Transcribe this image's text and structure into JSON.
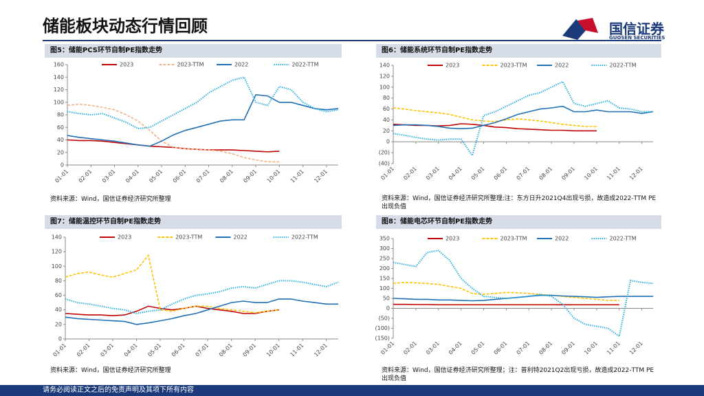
{
  "header": {
    "title": "储能板块动态行情回顾",
    "logo": "国信证券",
    "logo_en": "GUOSEN SECURITIES"
  },
  "footer": "请务必阅读正文之后的免责声明及其项下所有内容",
  "chart_data": [
    {
      "type": "line",
      "title": "图5：储能PCS环节自制PE指数走势",
      "source": "资料来源：Wind，国信证券经济研究所整理",
      "categories": [
        "01-01",
        null,
        "02-01",
        null,
        "03-01",
        null,
        "04-01",
        null,
        "05-01",
        null,
        "06-01",
        null,
        "07-01",
        null,
        "08-01",
        null,
        "09-01",
        null,
        "10-01",
        null,
        "11-01",
        null,
        "12-01",
        null
      ],
      "ylim": [
        0,
        160
      ],
      "yticks": [
        0,
        20,
        40,
        60,
        80,
        100,
        120,
        140,
        160
      ],
      "series": [
        {
          "name": "2023",
          "color": "#c00000",
          "style": "solid",
          "values": [
            40,
            39,
            39,
            38,
            36,
            34,
            32,
            30,
            29,
            28,
            26,
            25,
            24,
            24,
            24,
            23,
            22,
            21,
            22,
            null,
            null,
            null,
            null,
            null
          ]
        },
        {
          "name": "2023-TTM",
          "color": "#f4b183",
          "style": "dashed",
          "values": [
            95,
            97,
            95,
            92,
            88,
            80,
            70,
            55,
            38,
            28,
            26,
            25,
            24,
            22,
            18,
            12,
            8,
            5,
            5,
            null,
            null,
            null,
            null,
            null
          ]
        },
        {
          "name": "2022",
          "color": "#1f6fb5",
          "style": "solid",
          "values": [
            47,
            44,
            42,
            40,
            38,
            35,
            32,
            30,
            38,
            48,
            55,
            60,
            65,
            70,
            72,
            72,
            112,
            110,
            100,
            100,
            95,
            90,
            88,
            90
          ]
        },
        {
          "name": "2022-TTM",
          "color": "#2ab0e0",
          "style": "dotted",
          "values": [
            85,
            82,
            80,
            82,
            75,
            68,
            58,
            60,
            70,
            80,
            90,
            100,
            115,
            125,
            135,
            140,
            100,
            95,
            125,
            120,
            100,
            90,
            85,
            88
          ]
        }
      ]
    },
    {
      "type": "line",
      "title": "图6：储能系统环节自制PE指数走势",
      "source": "资料来源：Wind，国信证券经济研究所整理;注：东方日升2021Q4出现亏损，故造成2022-TTM PE出现负值",
      "categories": [
        "01-01",
        null,
        "02-01",
        null,
        "03-01",
        null,
        "04-01",
        null,
        "05-01",
        null,
        "06-01",
        null,
        "07-01",
        null,
        "08-01",
        null,
        "09-01",
        null,
        "10-01",
        null,
        "11-01",
        null,
        "12-01",
        null
      ],
      "ylim": [
        -40,
        140
      ],
      "yticks": [
        {
          "value": -40,
          "label": "(40)"
        },
        {
          "value": -20,
          "label": "(20)"
        },
        0,
        20,
        40,
        60,
        80,
        100,
        120,
        140
      ],
      "series": [
        {
          "name": "2023",
          "color": "#c00000",
          "style": "solid",
          "values": [
            32,
            31,
            30,
            30,
            29,
            30,
            33,
            32,
            30,
            27,
            26,
            24,
            23,
            22,
            21,
            21,
            20,
            20,
            20,
            null,
            null,
            null,
            null,
            null
          ]
        },
        {
          "name": "2023-TTM",
          "color": "#ffc000",
          "style": "dashed",
          "values": [
            62,
            60,
            57,
            55,
            53,
            50,
            45,
            40,
            38,
            37,
            40,
            42,
            40,
            38,
            35,
            32,
            30,
            28,
            28,
            null,
            null,
            null,
            null,
            null
          ]
        },
        {
          "name": "2022",
          "color": "#1f6fb5",
          "style": "solid",
          "values": [
            30,
            31,
            31,
            30,
            28,
            25,
            24,
            25,
            30,
            35,
            42,
            50,
            55,
            60,
            62,
            65,
            55,
            55,
            58,
            55,
            55,
            55,
            52,
            55
          ]
        },
        {
          "name": "2022-TTM",
          "color": "#2ab0e0",
          "style": "dotted",
          "values": [
            15,
            12,
            8,
            5,
            3,
            5,
            5,
            -25,
            48,
            55,
            65,
            75,
            85,
            90,
            100,
            110,
            70,
            65,
            70,
            75,
            62,
            60,
            55,
            55
          ]
        }
      ]
    },
    {
      "type": "line",
      "title": "图7：储能温控环节自制PE指数走势",
      "source": "资料来源：Wind，国信证券经济研究所整理",
      "categories": [
        "01-01",
        null,
        "02-01",
        null,
        "03-01",
        null,
        "04-01",
        null,
        "05-01",
        null,
        "06-01",
        null,
        "07-01",
        null,
        "08-01",
        null,
        "09-01",
        null,
        "10-01",
        null,
        "11-01",
        null,
        "12-01",
        null
      ],
      "ylim": [
        0,
        140
      ],
      "yticks": [
        0,
        20,
        40,
        60,
        80,
        100,
        120,
        140
      ],
      "series": [
        {
          "name": "2023",
          "color": "#c00000",
          "style": "solid",
          "values": [
            35,
            34,
            33,
            33,
            32,
            33,
            38,
            45,
            42,
            40,
            42,
            45,
            42,
            40,
            38,
            35,
            35,
            38,
            40,
            null,
            null,
            null,
            null,
            null
          ]
        },
        {
          "name": "2023-TTM",
          "color": "#ffc000",
          "style": "dashed",
          "values": [
            85,
            90,
            92,
            88,
            85,
            90,
            95,
            115,
            40,
            38,
            42,
            45,
            45,
            42,
            40,
            38,
            36,
            38,
            40,
            null,
            null,
            null,
            null,
            null
          ]
        },
        {
          "name": "2022",
          "color": "#1f6fb5",
          "style": "solid",
          "values": [
            30,
            28,
            27,
            26,
            25,
            24,
            20,
            22,
            25,
            28,
            32,
            35,
            40,
            45,
            50,
            52,
            50,
            50,
            55,
            55,
            52,
            50,
            48,
            48
          ]
        },
        {
          "name": "2022-TTM",
          "color": "#2ab0e0",
          "style": "dotted",
          "values": [
            55,
            50,
            48,
            45,
            42,
            40,
            35,
            38,
            40,
            48,
            55,
            60,
            62,
            65,
            70,
            72,
            70,
            75,
            80,
            80,
            78,
            75,
            72,
            78
          ]
        }
      ]
    },
    {
      "type": "line",
      "title": "图8：储能电芯环节自制PE指数走势",
      "source": "资料来源：Wind，国信证券经济研究所整理；注：普利特2021Q2出现亏损，故造成2022-TTM PE出现负值",
      "categories": [
        "01-01",
        null,
        "02-01",
        null,
        "03-01",
        null,
        "04-01",
        null,
        "05-01",
        null,
        "06-01",
        null,
        "07-01",
        null,
        "08-01",
        null,
        "09-01",
        null,
        "10-01",
        null,
        "11-01",
        null,
        "12-01",
        null
      ],
      "ylim": [
        -150,
        350
      ],
      "yticks": [
        {
          "value": -150,
          "label": "(150)"
        },
        {
          "value": -100,
          "label": "(100)"
        },
        {
          "value": -50,
          "label": "(50)"
        },
        0,
        50,
        100,
        150,
        200,
        250,
        300,
        350
      ],
      "series": [
        {
          "name": "2023",
          "color": "#c00000",
          "style": "solid",
          "values": [
            20,
            20,
            19,
            19,
            18,
            18,
            18,
            18,
            18,
            18,
            18,
            18,
            18,
            18,
            18,
            18,
            18,
            18,
            18,
            18,
            18,
            null,
            null,
            null
          ]
        },
        {
          "name": "2023-TTM",
          "color": "#ffc000",
          "style": "dashed",
          "values": [
            125,
            130,
            128,
            125,
            120,
            110,
            100,
            75,
            70,
            75,
            80,
            78,
            75,
            70,
            65,
            60,
            55,
            50,
            45,
            40,
            40,
            null,
            null,
            null
          ]
        },
        {
          "name": "2022",
          "color": "#1f6fb5",
          "style": "solid",
          "values": [
            50,
            48,
            45,
            45,
            42,
            42,
            40,
            38,
            40,
            45,
            50,
            55,
            60,
            65,
            65,
            62,
            60,
            58,
            55,
            58,
            60,
            60,
            60,
            60
          ]
        },
        {
          "name": "2022-TTM",
          "color": "#2ab0e0",
          "style": "dotted",
          "values": [
            230,
            220,
            210,
            280,
            290,
            240,
            150,
            100,
            60,
            55,
            50,
            55,
            60,
            70,
            60,
            20,
            -50,
            -80,
            -90,
            -100,
            -140,
            140,
            130,
            125
          ]
        }
      ]
    }
  ]
}
